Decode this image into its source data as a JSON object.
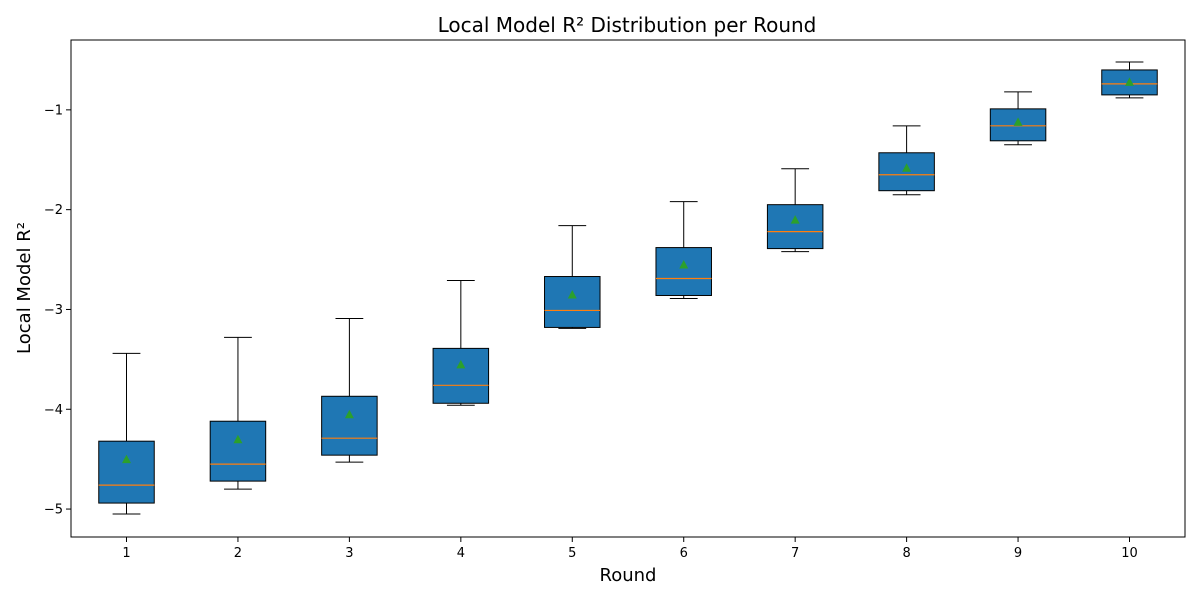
{
  "chart_data": {
    "type": "box",
    "title": "Local Model R² Distribution per Round",
    "xlabel": "Round",
    "ylabel": "Local Model R²",
    "categories": [
      "1",
      "2",
      "3",
      "4",
      "5",
      "6",
      "7",
      "8",
      "9",
      "10"
    ],
    "ylim": [
      -5.28,
      -0.3
    ],
    "yticks": [
      -5,
      -4,
      -3,
      -2,
      -1
    ],
    "ytick_labels": [
      "−5",
      "−4",
      "−3",
      "−2",
      "−1"
    ],
    "grid": false,
    "show_means": true,
    "colors": {
      "box_fill": "#1f77b4",
      "box_edge": "#000000",
      "median": "#ff7f0e",
      "mean": "#2ca02c",
      "whisker": "#000000"
    },
    "boxes": [
      {
        "round": "1",
        "whisker_low": -5.05,
        "q1": -4.94,
        "median": -4.76,
        "q3": -4.32,
        "whisker_high": -3.44,
        "mean": -4.5
      },
      {
        "round": "2",
        "whisker_low": -4.8,
        "q1": -4.72,
        "median": -4.55,
        "q3": -4.12,
        "whisker_high": -3.28,
        "mean": -4.3
      },
      {
        "round": "3",
        "whisker_low": -4.53,
        "q1": -4.46,
        "median": -4.29,
        "q3": -3.87,
        "whisker_high": -3.09,
        "mean": -4.05
      },
      {
        "round": "4",
        "whisker_low": -3.96,
        "q1": -3.94,
        "median": -3.76,
        "q3": -3.39,
        "whisker_high": -2.71,
        "mean": -3.55
      },
      {
        "round": "5",
        "whisker_low": -3.19,
        "q1": -3.18,
        "median": -3.01,
        "q3": -2.67,
        "whisker_high": -2.16,
        "mean": -2.85
      },
      {
        "round": "6",
        "whisker_low": -2.89,
        "q1": -2.86,
        "median": -2.69,
        "q3": -2.38,
        "whisker_high": -1.92,
        "mean": -2.55
      },
      {
        "round": "7",
        "whisker_low": -2.42,
        "q1": -2.39,
        "median": -2.22,
        "q3": -1.95,
        "whisker_high": -1.59,
        "mean": -2.1
      },
      {
        "round": "8",
        "whisker_low": -1.85,
        "q1": -1.81,
        "median": -1.65,
        "q3": -1.43,
        "whisker_high": -1.16,
        "mean": -1.58
      },
      {
        "round": "9",
        "whisker_low": -1.35,
        "q1": -1.31,
        "median": -1.16,
        "q3": -0.99,
        "whisker_high": -0.82,
        "mean": -1.12
      },
      {
        "round": "10",
        "whisker_low": -0.88,
        "q1": -0.85,
        "median": -0.74,
        "q3": -0.6,
        "whisker_high": -0.52,
        "mean": -0.72
      }
    ]
  }
}
